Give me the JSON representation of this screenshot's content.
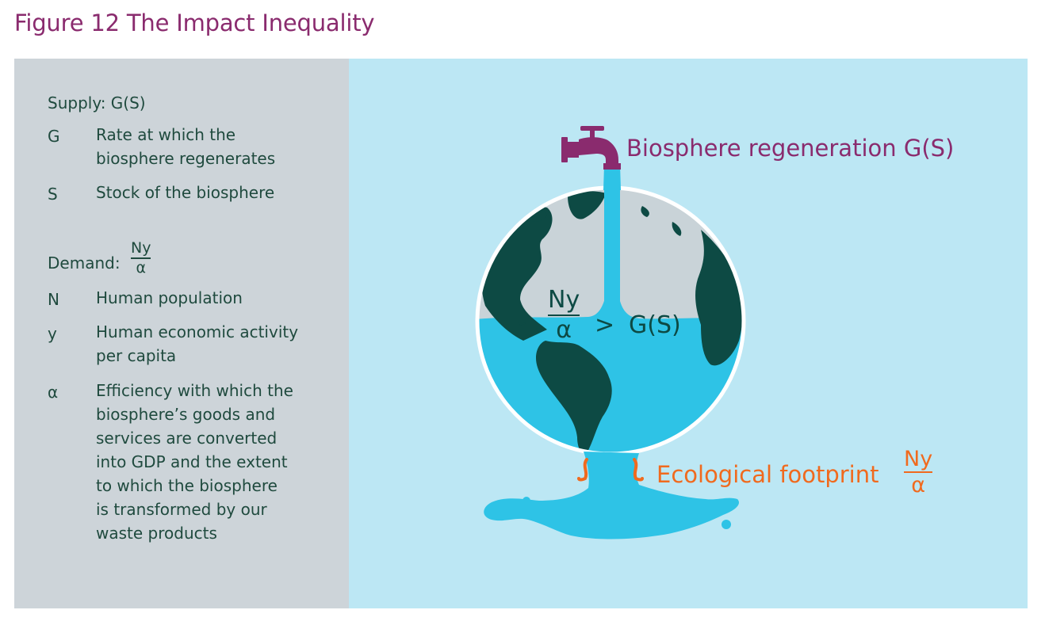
{
  "title": "Figure 12 The Impact Inequality",
  "legend": {
    "supply_heading": "Supply: G(S)",
    "demand_heading": "Demand:",
    "demand_fraction": {
      "numerator": "Ny",
      "denominator": "α"
    },
    "supply_items": [
      {
        "symbol": "G",
        "lines": [
          "Rate at which the",
          "biosphere regenerates"
        ]
      },
      {
        "symbol": "S",
        "lines": [
          "Stock of the biosphere"
        ]
      }
    ],
    "demand_items": [
      {
        "symbol": "N",
        "lines": [
          "Human population"
        ]
      },
      {
        "symbol": "y",
        "lines": [
          "Human economic activity",
          "per capita"
        ]
      },
      {
        "symbol": "α",
        "lines": [
          "Efficiency with which the",
          "biosphere’s goods and",
          "services are converted",
          "into GDP and the extent",
          "to which the biosphere",
          "is transformed by our",
          "waste products"
        ]
      }
    ]
  },
  "diagram": {
    "tap_label": "Biosphere regeneration  G(S)",
    "inequality": {
      "numerator": "Ny",
      "denominator": "α",
      "relation": ">",
      "rhs": "G(S)"
    },
    "footprint_label": "Ecological footprint",
    "footprint_fraction": {
      "numerator": "Ny",
      "denominator": "α"
    },
    "colors": {
      "tap": "#8a2b6e",
      "water": "#2ec3e6",
      "land": "#0d4a44",
      "globe_top": "#c9d3d8",
      "leak": "#f06a1e",
      "text_dark": "#1f4a3e"
    }
  }
}
